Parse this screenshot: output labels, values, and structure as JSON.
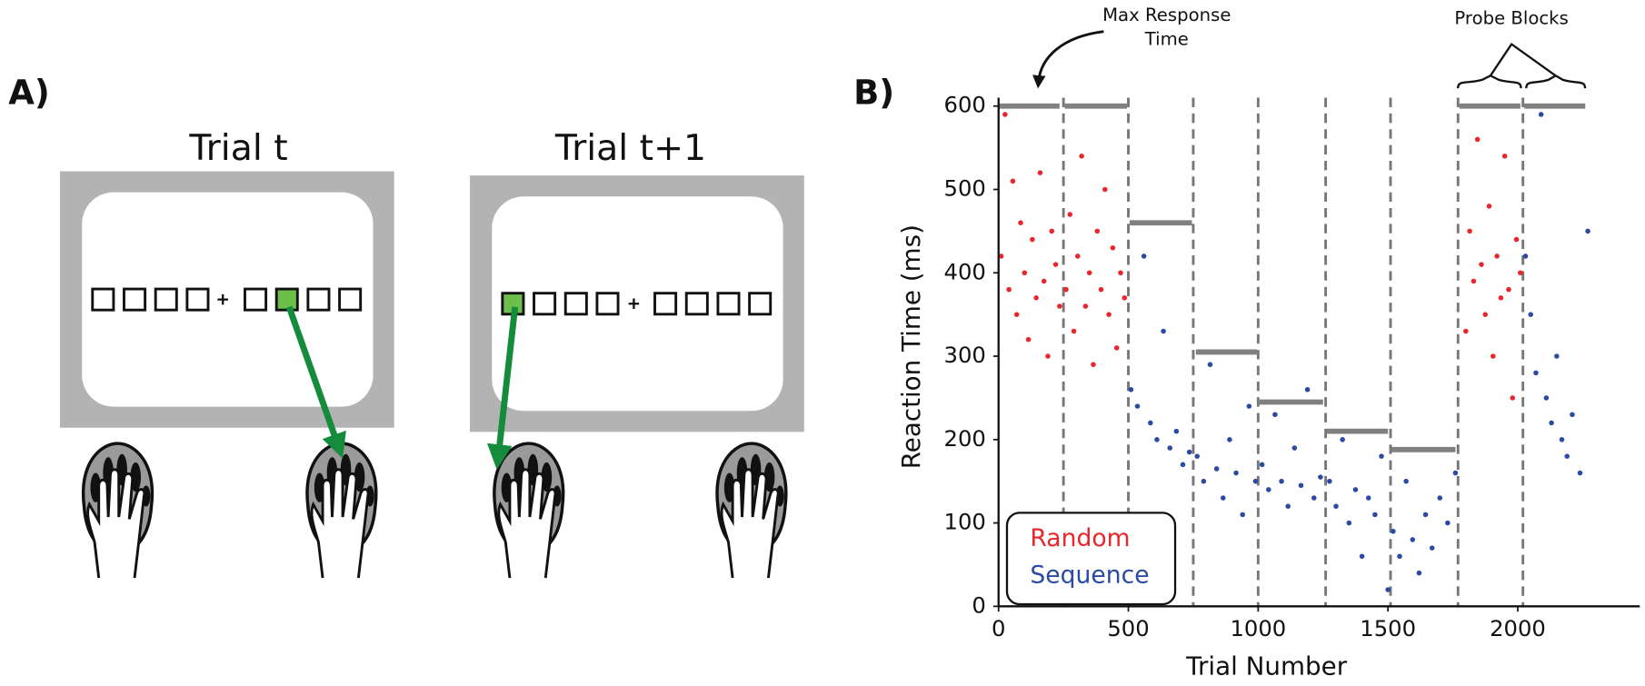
{
  "panel_a": {
    "label": "A)",
    "trials": [
      "Trial t",
      "Trial t+1"
    ]
  },
  "panel_b_label": "B)",
  "chart_data": {
    "type": "scatter",
    "xlabel": "Trial Number",
    "ylabel": "Reaction Time (ms)",
    "xlim": [
      0,
      2470
    ],
    "ylim": [
      0,
      610
    ],
    "xticks": [
      0,
      500,
      1000,
      1500,
      2000
    ],
    "yticks": [
      0,
      100,
      200,
      300,
      400,
      500,
      600
    ],
    "legend": "lower left",
    "annotations": [
      "Max Response Time",
      "Probe Blocks"
    ],
    "block_boundaries": [
      250,
      500,
      750,
      1000,
      1260,
      1510,
      1770,
      2020
    ],
    "max_response": [
      {
        "start": 0,
        "end": 235,
        "value": 600
      },
      {
        "start": 255,
        "end": 495,
        "value": 600
      },
      {
        "start": 505,
        "end": 745,
        "value": 460
      },
      {
        "start": 760,
        "end": 995,
        "value": 305
      },
      {
        "start": 1005,
        "end": 1250,
        "value": 245
      },
      {
        "start": 1265,
        "end": 1500,
        "value": 210
      },
      {
        "start": 1515,
        "end": 1760,
        "value": 188
      },
      {
        "start": 1775,
        "end": 2010,
        "value": 600
      },
      {
        "start": 2025,
        "end": 2260,
        "value": 600
      }
    ],
    "series": [
      {
        "name": "Random",
        "color": "#e8262b",
        "x": [
          10,
          25,
          40,
          55,
          70,
          85,
          100,
          115,
          130,
          145,
          160,
          175,
          190,
          205,
          220,
          235,
          260,
          275,
          290,
          305,
          320,
          335,
          350,
          365,
          380,
          395,
          410,
          425,
          440,
          455,
          470,
          485,
          1800,
          1815,
          1830,
          1845,
          1860,
          1875,
          1890,
          1905,
          1920,
          1935,
          1950,
          1965,
          1980,
          1995,
          2010
        ],
        "values": [
          420,
          590,
          380,
          510,
          350,
          460,
          400,
          320,
          440,
          370,
          520,
          390,
          300,
          450,
          410,
          360,
          380,
          470,
          330,
          420,
          540,
          360,
          400,
          290,
          450,
          380,
          500,
          350,
          430,
          310,
          400,
          370,
          330,
          450,
          390,
          560,
          410,
          350,
          480,
          300,
          420,
          370,
          540,
          380,
          250,
          440,
          400
        ]
      },
      {
        "name": "Sequence",
        "color": "#2b4aa3",
        "x": [
          510,
          535,
          560,
          585,
          610,
          635,
          660,
          685,
          710,
          735,
          765,
          790,
          815,
          840,
          865,
          890,
          915,
          940,
          965,
          990,
          1015,
          1040,
          1065,
          1090,
          1115,
          1140,
          1165,
          1190,
          1215,
          1240,
          1275,
          1300,
          1325,
          1350,
          1375,
          1400,
          1425,
          1450,
          1475,
          1500,
          1520,
          1545,
          1570,
          1595,
          1620,
          1645,
          1670,
          1700,
          1730,
          1760,
          2030,
          2050,
          2070,
          2090,
          2110,
          2130,
          2150,
          2170,
          2190,
          2210,
          2240,
          2270
        ],
        "values": [
          260,
          240,
          420,
          220,
          200,
          330,
          190,
          210,
          170,
          185,
          180,
          150,
          290,
          165,
          130,
          200,
          160,
          110,
          240,
          150,
          170,
          140,
          230,
          150,
          120,
          190,
          145,
          260,
          130,
          155,
          150,
          120,
          200,
          100,
          140,
          60,
          130,
          110,
          180,
          20,
          90,
          60,
          150,
          80,
          40,
          110,
          70,
          130,
          100,
          160,
          420,
          350,
          280,
          590,
          250,
          220,
          300,
          200,
          180,
          230,
          160,
          450
        ]
      }
    ]
  }
}
